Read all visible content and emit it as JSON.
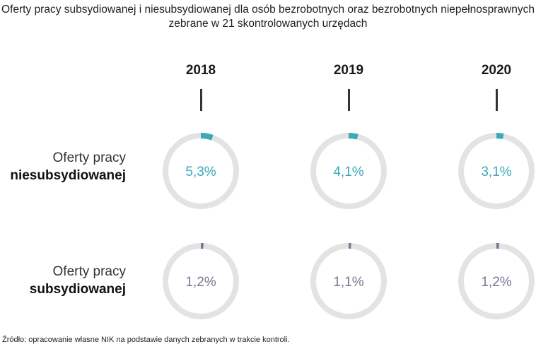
{
  "chart_data": {
    "type": "donut",
    "title": "Oferty pracy subsydiowanej i niesubsydiowanej dla osób bezrobotnych oraz bezrobotnych niepełnosprawnych zebrane w 21 skontrolowanych urzędach",
    "years": [
      "2018",
      "2019",
      "2020"
    ],
    "rows": [
      {
        "label_line1": "Oferty pracy",
        "label_line2": "niesubsydiowanej",
        "color": "#3aa9b8",
        "values": [
          5.3,
          4.1,
          3.1
        ],
        "value_labels": [
          "5,3%",
          "4,1%",
          "3,1%"
        ]
      },
      {
        "label_line1": "Oferty pracy",
        "label_line2": "subsydiowanej",
        "color": "#7e7393",
        "values": [
          1.2,
          1.1,
          1.2
        ],
        "value_labels": [
          "1,2%",
          "1,1%",
          "1,2%"
        ]
      }
    ],
    "track_color": "#e3e3e3"
  },
  "source": "Źródło: opracowanie własne NIK na podstawie danych zebranych w trakcie kontroli."
}
